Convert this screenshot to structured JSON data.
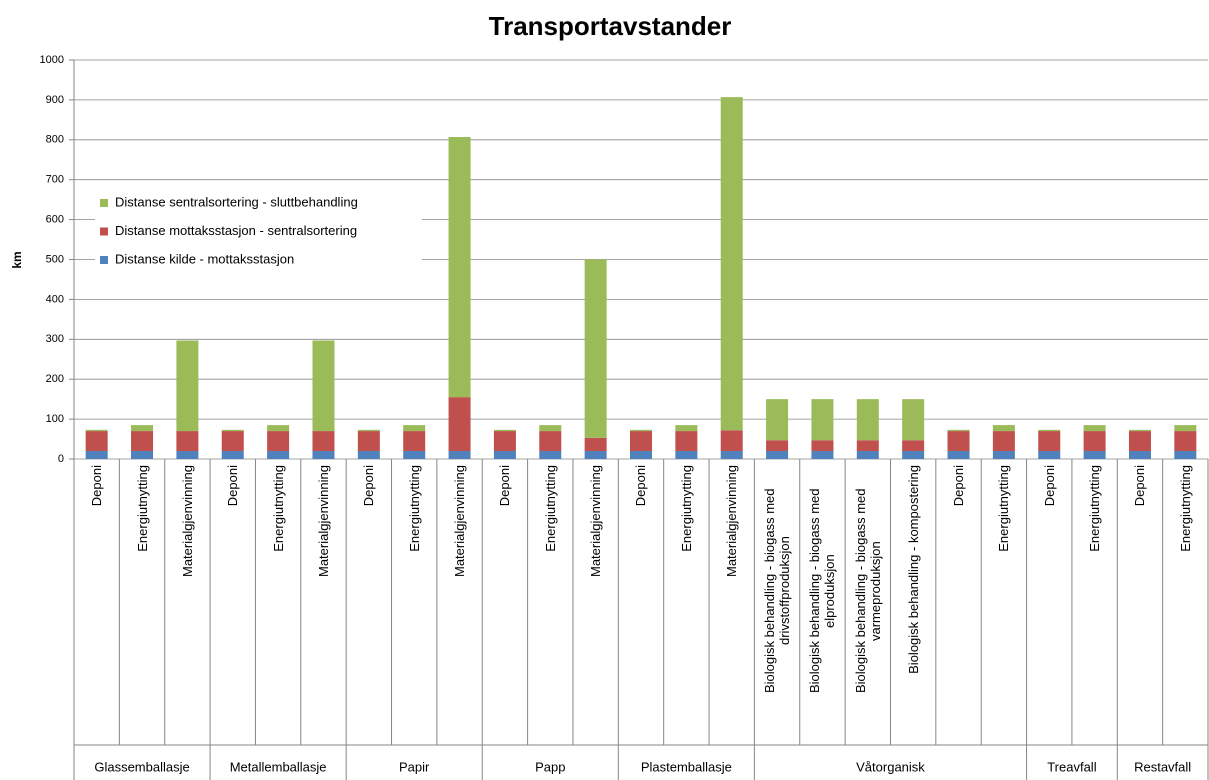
{
  "chart_data": {
    "type": "bar",
    "stacked": true,
    "title": "Transportavstander",
    "y_label": "km",
    "groups": [
      {
        "name": "Glassemballasje",
        "categories": [
          "Deponi",
          "Energiutnytting",
          "Materialgjenvinning"
        ]
      },
      {
        "name": "Metallemballasje",
        "categories": [
          "Deponi",
          "Energiutnytting",
          "Materialgjenvinning"
        ]
      },
      {
        "name": "Papir",
        "categories": [
          "Deponi",
          "Energiutnytting",
          "Materialgjenvinning"
        ]
      },
      {
        "name": "Papp",
        "categories": [
          "Deponi",
          "Energiutnytting",
          "Materialgjenvinning"
        ]
      },
      {
        "name": "Plastemballasje",
        "categories": [
          "Deponi",
          "Energiutnytting",
          "Materialgjenvinning"
        ]
      },
      {
        "name": "Våtorganisk",
        "categories": [
          "Biologisk behandling - biogass med drivstoffproduksjon",
          "Biologisk behandling - biogass med elproduksjon",
          "Biologisk behandling - biogass med varmeproduksjon",
          "Biologisk behandling - kompostering",
          "Deponi",
          "Energiutnytting"
        ]
      },
      {
        "name": "Treavfall",
        "categories": [
          "Deponi",
          "Energiutnytting"
        ]
      },
      {
        "name": "Restavfall",
        "categories": [
          "Deponi",
          "Energiutnytting"
        ]
      }
    ],
    "series": [
      {
        "name": "Distanse kilde - mottaksstasjon",
        "color": "#4f81bd",
        "values": [
          20,
          20,
          20,
          20,
          20,
          20,
          20,
          20,
          20,
          20,
          20,
          20,
          20,
          20,
          20,
          20,
          20,
          20,
          20,
          20,
          20,
          20,
          20,
          20,
          20
        ]
      },
      {
        "name": "Distanse mottaksstasjon - sentralsortering",
        "color": "#c0504d",
        "values": [
          50,
          50,
          50,
          50,
          50,
          50,
          50,
          50,
          135,
          50,
          50,
          33,
          50,
          50,
          52,
          27,
          27,
          27,
          27,
          50,
          50,
          50,
          50,
          50,
          50
        ]
      },
      {
        "name": "Distanse sentralsortering - sluttbehandling",
        "color": "#9bbb59",
        "values": [
          3,
          15,
          227,
          3,
          15,
          227,
          3,
          15,
          652,
          3,
          15,
          447,
          3,
          15,
          835,
          103,
          103,
          103,
          103,
          3,
          15,
          3,
          15,
          3,
          15
        ]
      }
    ],
    "ylim": [
      0,
      1000
    ],
    "yticks": [
      0,
      100,
      200,
      300,
      400,
      500,
      600,
      700,
      800,
      900,
      1000
    ],
    "grid": true,
    "legend": "upper left"
  }
}
